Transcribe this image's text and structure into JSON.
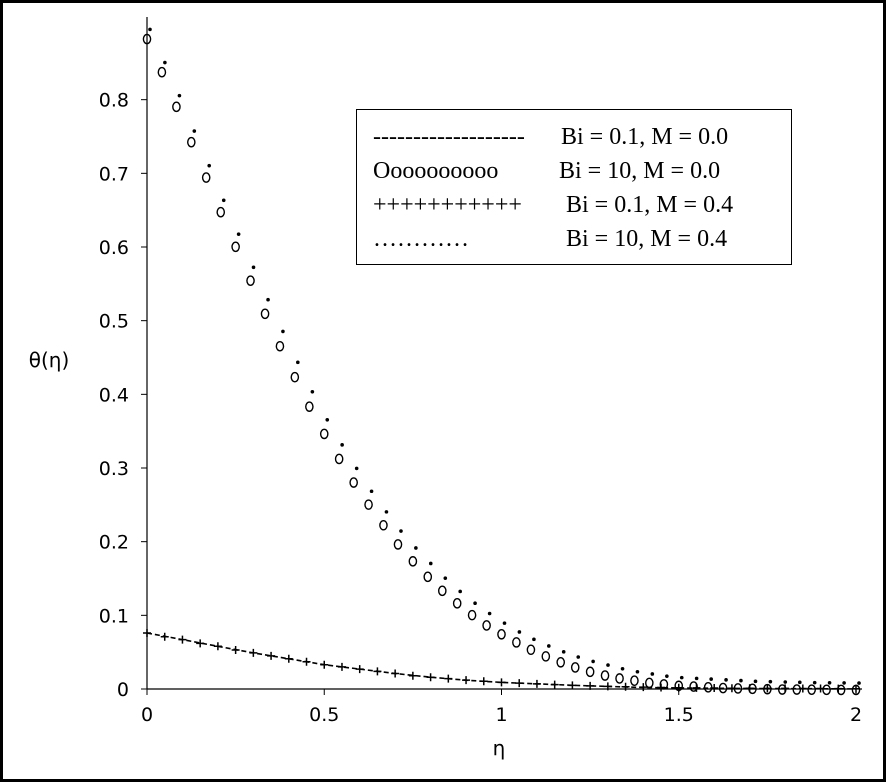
{
  "chart_data": {
    "type": "scatter",
    "xlabel": "η",
    "ylabel": "θ(η)",
    "xlim": [
      0,
      2
    ],
    "ylim": [
      0,
      0.9
    ],
    "x_ticks": [
      "0",
      "0.5",
      "1",
      "1.5",
      "2"
    ],
    "y_ticks": [
      "0",
      "0.1",
      "0.2",
      "0.3",
      "0.4",
      "0.5",
      "0.6",
      "0.7",
      "0.8"
    ],
    "grid": false,
    "legend_position": "top-right",
    "legend": [
      {
        "symbol": "-------------------",
        "label": "Bi = 0.1, M = 0.0"
      },
      {
        "symbol": "Oooooooooo",
        "label": "Bi = 10, M = 0.0"
      },
      {
        "symbol": "+++++++++++",
        "label": "Bi = 0.1, M = 0.4"
      },
      {
        "symbol": "…………",
        "label": "Bi = 10, M = 0.4"
      }
    ],
    "series": [
      {
        "style": "dashed-line",
        "x": [
          0,
          0.1,
          0.2,
          0.3,
          0.4,
          0.5,
          0.6,
          0.7,
          0.8,
          0.9,
          1.0,
          1.2,
          1.4,
          1.6,
          1.8,
          2.0
        ],
        "y": [
          0.076,
          0.067,
          0.058,
          0.049,
          0.041,
          0.033,
          0.027,
          0.021,
          0.016,
          0.012,
          0.009,
          0.005,
          0.002,
          0.001,
          0.0005,
          0.0002
        ]
      },
      {
        "style": "circles",
        "x": [
          0,
          0.042,
          0.083,
          0.125,
          0.167,
          0.208,
          0.25,
          0.292,
          0.333,
          0.375,
          0.417,
          0.458,
          0.5,
          0.542,
          0.583,
          0.625,
          0.667,
          0.708,
          0.75,
          0.792,
          0.833,
          0.875,
          0.917,
          0.958,
          1.0,
          1.042,
          1.083,
          1.125,
          1.167,
          1.208,
          1.25,
          1.292,
          1.333,
          1.375,
          1.417,
          1.458,
          1.5,
          1.542,
          1.583,
          1.625,
          1.667,
          1.708,
          1.75,
          1.792,
          1.833,
          1.875,
          1.917,
          1.958,
          2.0
        ],
        "y": [
          0.885,
          0.84,
          0.793,
          0.745,
          0.697,
          0.65,
          0.603,
          0.557,
          0.512,
          0.468,
          0.426,
          0.386,
          0.349,
          0.315,
          0.283,
          0.253,
          0.225,
          0.199,
          0.176,
          0.155,
          0.136,
          0.119,
          0.103,
          0.089,
          0.077,
          0.066,
          0.056,
          0.047,
          0.039,
          0.032,
          0.026,
          0.021,
          0.017,
          0.014,
          0.011,
          0.009,
          0.007,
          0.006,
          0.005,
          0.004,
          0.0035,
          0.003,
          0.0025,
          0.002,
          0.002,
          0.0018,
          0.0016,
          0.0015,
          0.0014
        ]
      },
      {
        "style": "plus",
        "x": [
          0,
          0.05,
          0.1,
          0.15,
          0.2,
          0.25,
          0.3,
          0.35,
          0.4,
          0.45,
          0.5,
          0.55,
          0.6,
          0.65,
          0.7,
          0.75,
          0.8,
          0.85,
          0.9,
          0.95,
          1.0,
          1.05,
          1.1,
          1.15,
          1.2,
          1.25,
          1.3,
          1.35,
          1.4,
          1.45,
          1.5,
          1.55,
          1.6,
          1.65,
          1.7,
          1.75,
          1.8,
          1.85,
          1.9,
          1.95,
          2.0
        ],
        "y": [
          0.076,
          0.071,
          0.067,
          0.062,
          0.058,
          0.053,
          0.049,
          0.045,
          0.041,
          0.037,
          0.033,
          0.03,
          0.027,
          0.024,
          0.021,
          0.018,
          0.016,
          0.014,
          0.012,
          0.0105,
          0.009,
          0.008,
          0.007,
          0.006,
          0.005,
          0.0042,
          0.0035,
          0.003,
          0.0025,
          0.002,
          0.0017,
          0.0015,
          0.0013,
          0.0011,
          0.001,
          0.0009,
          0.0008,
          0.0007,
          0.0006,
          0.0005,
          0.0004
        ]
      },
      {
        "style": "dots",
        "x": [
          0,
          0.042,
          0.083,
          0.125,
          0.167,
          0.208,
          0.25,
          0.292,
          0.333,
          0.375,
          0.417,
          0.458,
          0.5,
          0.542,
          0.583,
          0.625,
          0.667,
          0.708,
          0.75,
          0.792,
          0.833,
          0.875,
          0.917,
          0.958,
          1.0,
          1.042,
          1.083,
          1.125,
          1.167,
          1.208,
          1.25,
          1.292,
          1.333,
          1.375,
          1.417,
          1.458,
          1.5,
          1.542,
          1.583,
          1.625,
          1.667,
          1.708,
          1.75,
          1.792,
          1.833,
          1.875,
          1.917,
          1.958,
          2.0
        ],
        "y": [
          0.89,
          0.845,
          0.8,
          0.752,
          0.705,
          0.658,
          0.612,
          0.567,
          0.523,
          0.48,
          0.438,
          0.398,
          0.36,
          0.326,
          0.294,
          0.263,
          0.235,
          0.209,
          0.186,
          0.165,
          0.145,
          0.127,
          0.111,
          0.097,
          0.084,
          0.072,
          0.062,
          0.053,
          0.045,
          0.038,
          0.032,
          0.027,
          0.022,
          0.018,
          0.015,
          0.012,
          0.01,
          0.009,
          0.008,
          0.007,
          0.006,
          0.005,
          0.0045,
          0.004,
          0.0036,
          0.0032,
          0.003,
          0.0028,
          0.0026
        ]
      }
    ]
  }
}
